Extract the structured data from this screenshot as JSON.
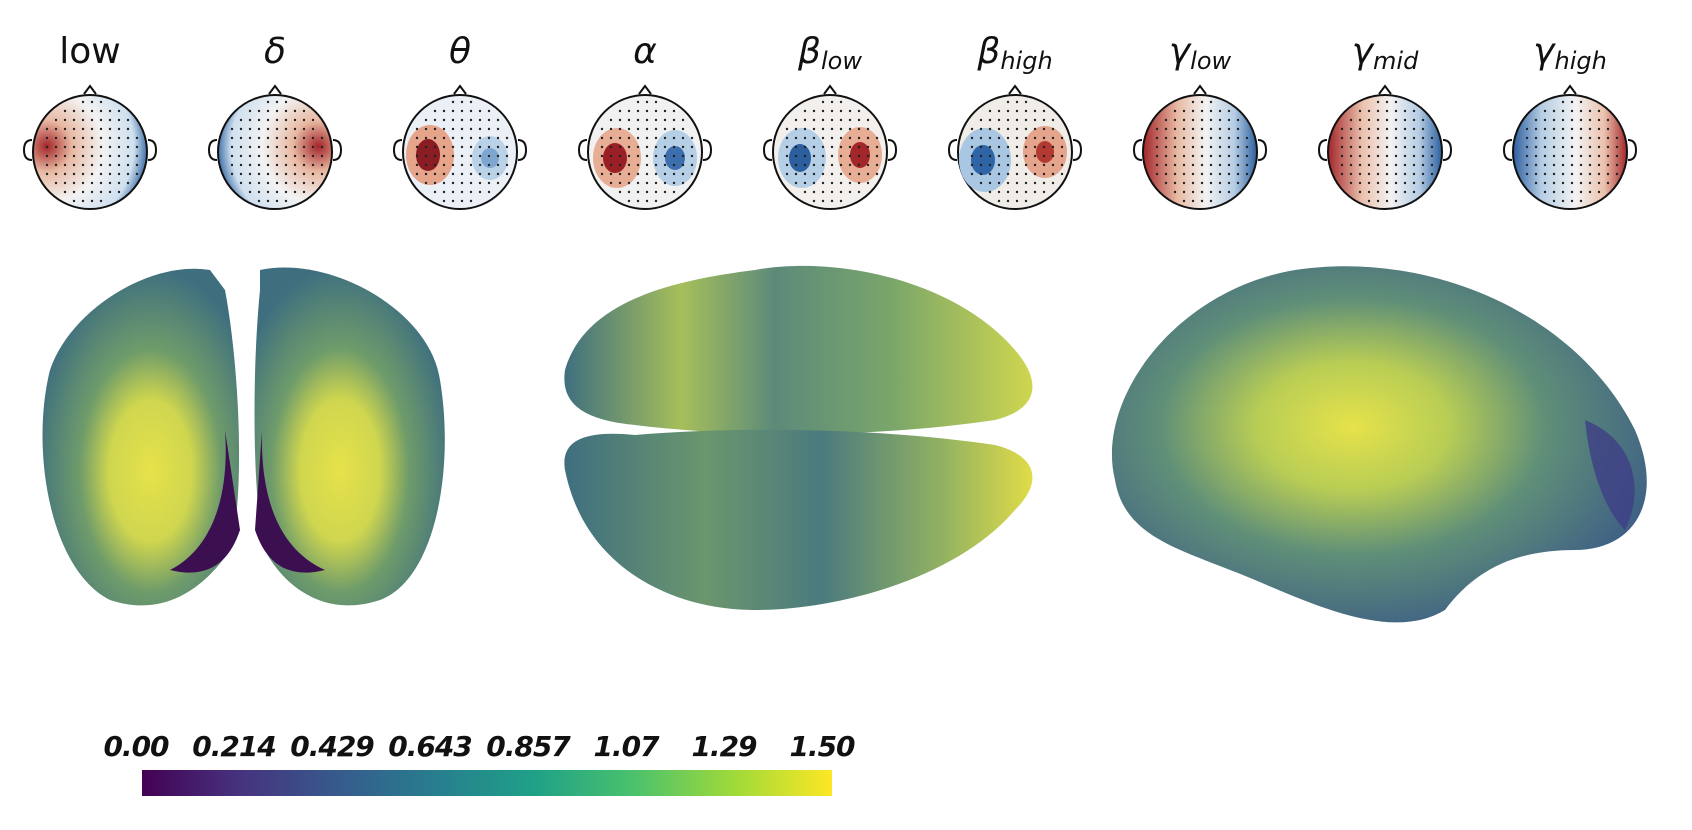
{
  "bands": [
    {
      "id": "low",
      "main": "low",
      "sub": "",
      "italic": false
    },
    {
      "id": "delta",
      "main": "δ",
      "sub": "",
      "italic": true
    },
    {
      "id": "theta",
      "main": "θ",
      "sub": "",
      "italic": true
    },
    {
      "id": "alpha",
      "main": "α",
      "sub": "",
      "italic": true
    },
    {
      "id": "beta-low",
      "main": "β",
      "sub": "low",
      "italic": true
    },
    {
      "id": "beta-high",
      "main": "β",
      "sub": "high",
      "italic": true
    },
    {
      "id": "gamma-low",
      "main": "γ",
      "sub": "low",
      "italic": true
    },
    {
      "id": "gamma-mid",
      "main": "γ",
      "sub": "mid",
      "italic": true
    },
    {
      "id": "gamma-high",
      "main": "γ",
      "sub": "high",
      "italic": true
    }
  ],
  "colorbar": {
    "ticks": [
      "0.00",
      "0.214",
      "0.429",
      "0.643",
      "0.857",
      "1.07",
      "1.29",
      "1.50"
    ],
    "range": [
      0.0,
      1.5
    ],
    "colormap": "viridis"
  },
  "colors": {
    "topo_positive": "#a3262a",
    "topo_negative": "#2c5f9e",
    "surface_base": "#3f6f7f",
    "surface_high": "#e6e24a",
    "surface_low": "#3b0f50"
  }
}
